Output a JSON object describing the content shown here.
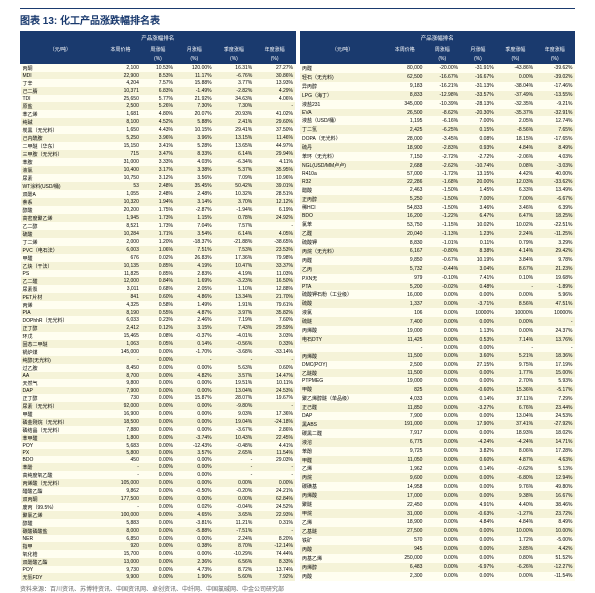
{
  "title": "图表 13: 化工产品涨跌幅排名表",
  "group_header": "产品涨幅排名",
  "columns": [
    "（元/吨）",
    "本周价格",
    "周涨幅",
    "月涨幅",
    "季度涨幅",
    "年度涨幅"
  ],
  "sub_columns": [
    "",
    "",
    "(%)",
    "(%)",
    "(%)",
    "(%)"
  ],
  "source": "资料来源：百川资讯、苏博特资讯、中国资讯网、卓创资讯、中纤网、中国氯碱网、中金公司研究部",
  "colors": {
    "header_bg": "#1a3a6e",
    "header_text": "#ffffff",
    "row_odd": "#fffef0",
    "row_even": "#f5f3d8",
    "border": "#1a3a6e"
  },
  "left_rows": [
    [
      "丙酮",
      "2,100",
      "10.53%",
      "120.00%",
      "16.31%",
      "27.27%"
    ],
    [
      "MDI",
      "22,900",
      "8.53%",
      "11.17%",
      "-6.76%",
      "30.86%"
    ],
    [
      "丁辛",
      "4,204",
      "7.57%",
      "15.88%",
      "3.77%",
      "13.93%"
    ],
    [
      "己二腈",
      "10,371",
      "6.83%",
      "-1.49%",
      "-2.82%",
      "4.29%"
    ],
    [
      "TDI",
      "25,650",
      "5.77%",
      "21.92%",
      "34.63%",
      "4.06%"
    ],
    [
      "原盐",
      "2,500",
      "5.26%",
      "7.30%",
      "7.30%",
      "-"
    ],
    [
      "苯乙烯",
      "1,681",
      "4.80%",
      "20.07%",
      "20.93%",
      "41.02%"
    ],
    [
      "纯碱",
      "8,100",
      "4.52%",
      "5.88%",
      "2.41%",
      "29.60%"
    ],
    [
      "炭黑（无光料）",
      "1,650",
      "4.43%",
      "10.15%",
      "29.41%",
      "37.50%"
    ],
    [
      "己内酰胺",
      "5,250",
      "3.96%",
      "3.96%",
      "13.15%",
      "11.46%"
    ],
    [
      "二甲醚（华东）",
      "15,150",
      "3.41%",
      "5.28%",
      "13.65%",
      "44.97%"
    ],
    [
      "三甲胺（无光料）",
      "715",
      "3.47%",
      "8.33%",
      "6.14%",
      "29.94%"
    ],
    [
      "苯胺",
      "31,000",
      "3.33%",
      "4.03%",
      "-6.34%",
      "4.11%"
    ],
    [
      "液氯",
      "10,400",
      "3.17%",
      "3.38%",
      "5.37%",
      "35.95%"
    ],
    [
      "尿素",
      "10,750",
      "3.12%",
      "3.56%",
      "7.09%",
      "10.96%"
    ],
    [
      "WT涂料(USD/桶)",
      "53",
      "2.48%",
      "35.45%",
      "50.42%",
      "39.01%"
    ],
    [
      "双酚A",
      "1,055",
      "2.48%",
      "2.48%",
      "10.32%",
      "28.51%"
    ],
    [
      "萘系",
      "10,320",
      "1.94%",
      "3.14%",
      "3.70%",
      "12.12%"
    ],
    [
      "醇酸",
      "20,200",
      "1.75%",
      "-2.87%",
      "-1.94%",
      "6.19%"
    ],
    [
      "高密度聚乙烯",
      "1,945",
      "1.73%",
      "1.15%",
      "0.78%",
      "24.92%"
    ],
    [
      "乙二醇",
      "8,521",
      "1.73%",
      "7.04%",
      "7.57%",
      "-"
    ],
    [
      "硫酸",
      "10,284",
      "1.71%",
      "3.54%",
      "6.14%",
      "4.05%"
    ],
    [
      "丁二烯",
      "2,000",
      "1.20%",
      "-18.37%",
      "-21.88%",
      "-38.65%"
    ],
    [
      "PVC（电石法）",
      "6,003",
      "1.06%",
      "7.51%",
      "7.53%",
      "23.53%"
    ],
    [
      "甲醛",
      "676",
      "0.02%",
      "26.83%",
      "17.36%",
      "79.98%"
    ],
    [
      "乙炔（干法）",
      "10,135",
      "0.85%",
      "4.19%",
      "10.47%",
      "33.37%"
    ],
    [
      "PS",
      "11,825",
      "0.85%",
      "2.83%",
      "4.19%",
      "11.03%"
    ],
    [
      "乙二醛",
      "12,000",
      "0.84%",
      "1.69%",
      "-3.23%",
      "16.50%"
    ],
    [
      "尿素泵",
      "3,011",
      "0.68%",
      "2.05%",
      "1.10%",
      "12.88%"
    ],
    [
      "PET片材",
      "841",
      "0.60%",
      "4.86%",
      "13.34%",
      "21.70%"
    ],
    [
      "丙烯",
      "4,325",
      "0.58%",
      "1.49%",
      "1.91%",
      "79.61%"
    ],
    [
      "PIA",
      "8,190",
      "0.55%",
      "4.87%",
      "3.97%",
      "35.82%"
    ],
    [
      "DOPhhR（无光料）",
      "6,033",
      "0.23%",
      "2.46%",
      "7.19%",
      "7.60%"
    ],
    [
      "正丁醇",
      "2,412",
      "0.12%",
      "3.15%",
      "7.43%",
      "29.59%"
    ],
    [
      "环戊",
      "15,465",
      "0.08%",
      "-0.37%",
      "-4.01%",
      "3.03%"
    ],
    [
      "固态二甲醚",
      "1,063",
      "0.05%",
      "0.14%",
      "-0.56%",
      "0.33%"
    ],
    [
      "锅炉煤",
      "145,000",
      "0.00%",
      "-1.70%",
      "-3.68%",
      "-33.14%"
    ],
    [
      "纯醇(无光料)",
      "-",
      "0.00%",
      "-",
      "-",
      "-"
    ],
    [
      "过乙胺",
      "8,450",
      "0.00%",
      "0.00%",
      "5.63%",
      "0.60%"
    ],
    [
      "AA",
      "8,700",
      "0.00%",
      "4.82%",
      "3.57%",
      "14.47%"
    ],
    [
      "天然气",
      "9,800",
      "0.00%",
      "0.00%",
      "19.51%",
      "10.11%"
    ],
    [
      "DAP",
      "7,900",
      "0.00%",
      "0.00%",
      "13.04%",
      "24.53%"
    ],
    [
      "正丁醇",
      "730",
      "0.00%",
      "15.87%",
      "28.07%",
      "19.67%"
    ],
    [
      "尿素（无光料）",
      "92,000",
      "0.00%",
      "0.00%",
      "-9.80%",
      "-"
    ],
    [
      "甲醛",
      "16,900",
      "0.00%",
      "0.00%",
      "9.03%",
      "17.36%"
    ],
    [
      "磷金刚烷（无光料）",
      "18,500",
      "0.00%",
      "0.00%",
      "19.04%",
      "-24.18%"
    ],
    [
      "磷结晶（无光料）",
      "7,880",
      "0.00%",
      "0.00%",
      "-3.67%",
      "2.86%"
    ],
    [
      "苯甲醛",
      "1,800",
      "0.00%",
      "-3.74%",
      "10.43%",
      "22.45%"
    ],
    [
      "POY",
      "5,683",
      "0.00%",
      "-12.43%",
      "-0.48%",
      "4.41%"
    ],
    [
      "PX",
      "5,800",
      "0.00%",
      "3.57%",
      "2.65%",
      "11.54%"
    ],
    [
      "BDO",
      "450",
      "0.00%",
      "0.00%",
      "-",
      "29.03%"
    ],
    [
      "苯酚",
      "-",
      "0.00%",
      "0.00%",
      "-",
      "-"
    ],
    [
      "高纯度氧乙酸",
      "-",
      "0.00%",
      "0.00%",
      "-",
      "-"
    ],
    [
      "丙烯酸（无光料）",
      "105,000",
      "0.00%",
      "0.00%",
      "0.00%",
      "0.00%"
    ],
    [
      "醋酸乙酯",
      "9,862",
      "0.00%",
      "-0.50%",
      "-0.20%",
      "24.21%"
    ],
    [
      "双丙酮",
      "177,500",
      "0.00%",
      "0.00%",
      "0.00%",
      "62.84%"
    ],
    [
      "废丙（99.5%）",
      "-",
      "0.00%",
      "0.02%",
      "-0.04%",
      "24.52%"
    ],
    [
      "聚氯乙烯",
      "100,000",
      "0.00%",
      "4.65%",
      "3.65%",
      "22.93%"
    ],
    [
      "醇醛",
      "5,883",
      "0.00%",
      "-3.81%",
      "11.21%",
      "0.31%"
    ],
    [
      "碳酸磷酸盐",
      "8,000",
      "0.00%",
      "-5.88%",
      "-7.51%",
      "-"
    ],
    [
      "NER",
      "6,850",
      "0.00%",
      "0.00%",
      "2.24%",
      "8.20%"
    ],
    [
      "指甲",
      "920",
      "0.00%",
      "0.38%",
      "8.70%",
      "-12.14%"
    ],
    [
      "氧化锆",
      "15,700",
      "0.00%",
      "0.00%",
      "-10.29%",
      "74.44%"
    ],
    [
      "双酚酸乙酯",
      "13,000",
      "0.00%",
      "2.36%",
      "6.56%",
      "8.33%"
    ],
    [
      "POY",
      "9,730",
      "0.00%",
      "4.73%",
      "8.72%",
      "13.74%"
    ],
    [
      "无氢FDY",
      "9,900",
      "0.00%",
      "1.90%",
      "5.60%",
      "7.92%"
    ]
  ],
  "right_rows": [
    [
      "丙醛",
      "80,000",
      "-20.00%",
      "-31.91%",
      "-43.86%",
      "-39.62%"
    ],
    [
      "轻石（无光料)",
      "62,500",
      "-16.67%",
      "-16.67%",
      "0.00%",
      "-39.02%"
    ],
    [
      "异丙醇",
      "9,183",
      "-16.21%",
      "-31.13%",
      "-38.04%",
      "-17.46%"
    ],
    [
      "LPG（海丁）",
      "8,833",
      "-12.98%",
      "-33.57%",
      "-37.49%",
      "-13.55%"
    ],
    [
      "液盐231",
      "345,000",
      "-10.39%",
      "-28.13%",
      "-32.35%",
      "-9.21%"
    ],
    [
      "EVA",
      "26,500",
      "-8.62%",
      "-20.30%",
      "-35.37%",
      "-32.91%"
    ],
    [
      "液盐（USD/桶）",
      "1,195",
      "-6.16%",
      "7.00%",
      "2.05%",
      "12.74%"
    ],
    [
      "丁二氢",
      "2,425",
      "-6.25%",
      "0.15%",
      "-8.56%",
      "7.65%"
    ],
    [
      "DOPA（无光料）",
      "28,000",
      "-3.45%",
      "0.08%",
      "18.15%",
      "-17.65%"
    ],
    [
      "硫丹",
      "18,900",
      "-2.83%",
      "0.93%",
      "4.84%",
      "8.49%"
    ],
    [
      "苯环（无光料）",
      "7,150",
      "-2.72%",
      "-2.72%",
      "-2.06%",
      "4.03%"
    ],
    [
      "NGL(USD/MM卢卢)",
      "2,688",
      "-2.62%",
      "-10.74%",
      "0.08%",
      "-3.03%"
    ],
    [
      "R410a",
      "57,000",
      "-1.72%",
      "13.15%",
      "4.42%",
      "40.00%"
    ],
    [
      "R32",
      "22,286",
      "-1.68%",
      "20.00%",
      "12.03%",
      "-33.62%"
    ],
    [
      "醋酸",
      "2,463",
      "-1.50%",
      "1.45%",
      "6.33%",
      "13.49%"
    ],
    [
      "正丙醇",
      "5,250",
      "-1.50%",
      "7.00%",
      "7.00%",
      "-6.67%"
    ],
    [
      "稀HCI",
      "54,833",
      "-1.50%",
      "3.46%",
      "3.46%",
      "6.39%"
    ],
    [
      "BDO",
      "16,200",
      "-1.22%",
      "6.47%",
      "6.47%",
      "18.25%"
    ],
    [
      "氯苯",
      "53,750",
      "-1.15%",
      "10.02%",
      "10.02%",
      "-22.51%"
    ],
    [
      "乙醛",
      "20,040",
      "-1.13%",
      "1.23%",
      "2.24%",
      "-11.25%"
    ],
    [
      "硫酸钾",
      "8,830",
      "-1.01%",
      "0.11%",
      "0.79%",
      "3.29%"
    ],
    [
      "丙烷（无光料）",
      "6,167",
      "-0.80%",
      "8.38%",
      "4.14%",
      "29.42%"
    ],
    [
      "丙醛",
      "9,850",
      "-0.67%",
      "10.19%",
      "3.84%",
      "9.78%"
    ],
    [
      "乙丙",
      "5,732",
      "-0.44%",
      "3.04%",
      "8.67%",
      "21.23%"
    ],
    [
      "PXN无",
      "979",
      "-0.10%",
      "7.41%",
      "0.10%",
      "19.68%"
    ],
    [
      "PTA",
      "5,200",
      "-0.02%",
      "0.48%",
      "-",
      "-1.89%"
    ],
    [
      "硫酸钾石粉（工业级）",
      "16,000",
      "0.00%",
      "0.00%",
      "0.00%",
      "5.96%"
    ],
    [
      "硫酸",
      "1,337",
      "0.00%",
      "-3.71%",
      "8.56%",
      "47.51%"
    ],
    [
      "液氯",
      "106",
      "0.00%",
      "10000%",
      "10000%",
      "10000%"
    ],
    [
      "硫醚",
      "7,400",
      "0.00%",
      "0.00%",
      "0.00%",
      "-"
    ],
    [
      "丙烯酸",
      "19,000",
      "0.00%",
      "1.13%",
      "0.00%",
      "24.37%"
    ],
    [
      "电石DTY",
      "11,425",
      "0.00%",
      "0.53%",
      "7.14%",
      "13.76%"
    ],
    [
      "",
      "-",
      "0.00%",
      "0.00%",
      "-",
      "-"
    ],
    [
      "丙烯酸",
      "11,500",
      "0.00%",
      "3.60%",
      "5.21%",
      "18.36%"
    ],
    [
      "DMC(POY)",
      "2,500",
      "0.00%",
      "27.15%",
      "9.75%",
      "17.19%"
    ],
    [
      "乙醚酸",
      "11,500",
      "0.00%",
      "0.00%",
      "1.77%",
      "15.00%"
    ],
    [
      "PTPMEG",
      "19,000",
      "0.00%",
      "0.00%",
      "2.70%",
      "5.93%"
    ],
    [
      "甲酸",
      "825",
      "0.00%",
      "-0.60%",
      "15.36%",
      "-5.17%"
    ],
    [
      "聚乙烯醇醚（单品级）",
      "4,033",
      "0.00%",
      "0.14%",
      "37.11%",
      "7.29%"
    ],
    [
      "正己醛",
      "11,850",
      "0.00%",
      "-3.27%",
      "6.76%",
      "23.44%"
    ],
    [
      "DAP",
      "7,900",
      "0.00%",
      "0.00%",
      "13.04%",
      "24.53%"
    ],
    [
      "黑ABS",
      "191,000",
      "0.00%",
      "17.90%",
      "37.41%",
      "-27.92%"
    ],
    [
      "碳黑二醛",
      "7,917",
      "0.00%",
      "0.00%",
      "18.93%",
      "18.02%"
    ],
    [
      "液溶",
      "6,775",
      "0.00%",
      "-4.24%",
      "-4.24%",
      "14.71%"
    ],
    [
      "苯酚",
      "9,725",
      "0.00%",
      "3.82%",
      "8.06%",
      "17.28%"
    ],
    [
      "甲醛",
      "11,050",
      "0.00%",
      "0.60%",
      "4.87%",
      "4.63%"
    ],
    [
      "乙烯",
      "1,962",
      "0.00%",
      "0.14%",
      "-0.62%",
      "5.13%"
    ],
    [
      "丙烷",
      "9,600",
      "0.00%",
      "0.00%",
      "-6.80%",
      "12.94%"
    ],
    [
      "碳磺基",
      "14,958",
      "0.00%",
      "0.00%",
      "9.76%",
      "49.80%"
    ],
    [
      "丙烯酸",
      "17,000",
      "0.00%",
      "0.00%",
      "9.38%",
      "16.67%"
    ],
    [
      "聚醚",
      "22,450",
      "0.00%",
      "4.91%",
      "4.40%",
      "38.46%"
    ],
    [
      "甲烷",
      "31,000",
      "0.00%",
      "-0.63%",
      "-1.27%",
      "23.72%"
    ],
    [
      "乙烯",
      "18,900",
      "0.00%",
      "4.84%",
      "4.84%",
      "8.49%"
    ],
    [
      "乙基醚",
      "27,500",
      "0.00%",
      "0.00%",
      "10.00%",
      "10.00%"
    ],
    [
      "铁矿",
      "570",
      "0.00%",
      "0.00%",
      "1.72%",
      "-5.00%"
    ],
    [
      "丙酸",
      "945",
      "0.00%",
      "0.00%",
      "3.85%",
      "4.42%"
    ],
    [
      "丙基乙烯",
      "250,000",
      "0.00%",
      "0.00%",
      "0.80%",
      "51.52%"
    ],
    [
      "丙烯醇",
      "6,483",
      "0.00%",
      "-6.97%",
      "-6.26%",
      "-12.27%"
    ],
    [
      "丙酸",
      "2,300",
      "0.00%",
      "0.00%",
      "0.00%",
      "-11.54%"
    ]
  ]
}
